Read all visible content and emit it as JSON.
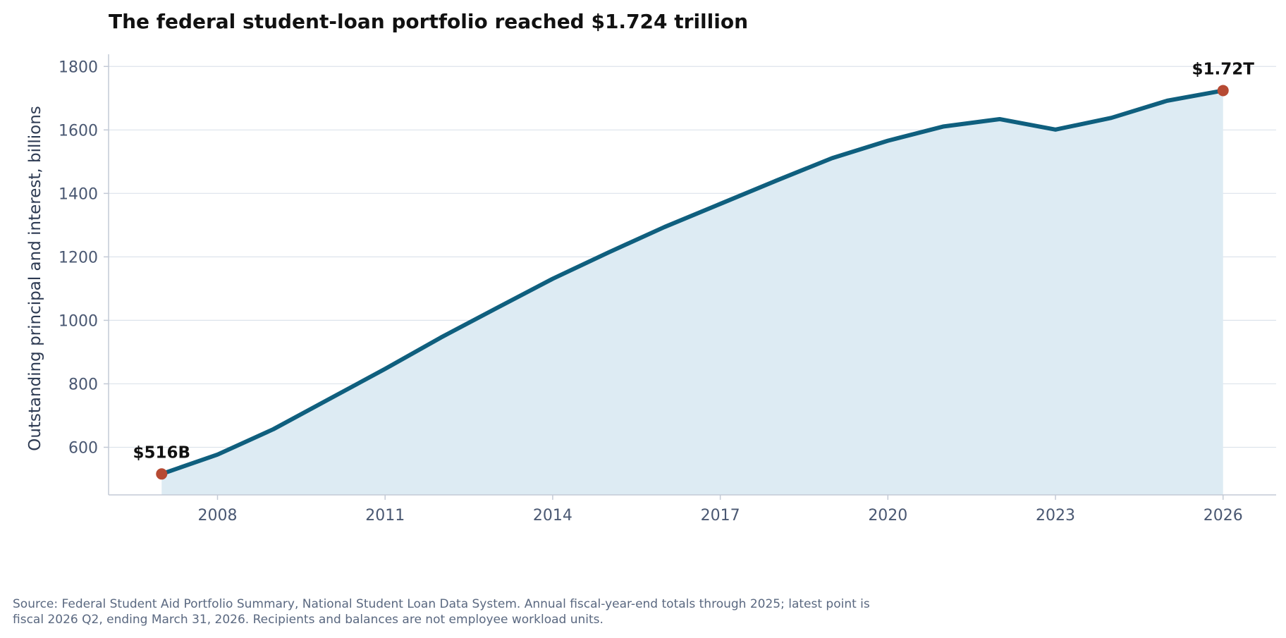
{
  "chart_data": {
    "type": "area",
    "title": "The federal student-loan portfolio reached $1.724 trillion",
    "ylabel": "Outstanding principal and interest, billions",
    "xlabel": "",
    "x": [
      2007,
      2008,
      2009,
      2010,
      2011,
      2012,
      2013,
      2014,
      2015,
      2016,
      2017,
      2018,
      2019,
      2020,
      2021,
      2022,
      2023,
      2024,
      2025,
      2026
    ],
    "series": [
      {
        "values": [
          516,
          577,
          657,
          752,
          847,
          946,
          1039,
          1131,
          1214,
          1294,
          1367,
          1440,
          1511,
          1566,
          1611,
          1634,
          1601,
          1638,
          1692,
          1724
        ]
      }
    ],
    "xlim": [
      2006.05,
      2026.95
    ],
    "ylim": [
      450,
      1825
    ],
    "xticks": [
      2008,
      2011,
      2014,
      2017,
      2020,
      2023,
      2026
    ],
    "yticks": [
      600,
      800,
      1000,
      1200,
      1400,
      1600,
      1800
    ],
    "grid": "horizontal",
    "annotations": [
      {
        "x": 2007,
        "y": 516,
        "label": "$516B"
      },
      {
        "x": 2026,
        "y": 1724,
        "label": "$1.72T"
      }
    ],
    "colors": {
      "line": "#0f5f7e",
      "fill": "#ddebf3",
      "marker": "#b64a33",
      "grid": "#dde3ec",
      "axis": "#c3cad6"
    }
  },
  "source_note": {
    "line1": "Source: Federal Student Aid Portfolio Summary, National Student Loan Data System. Annual fiscal-year-end totals through 2025; latest point is",
    "line2": "fiscal 2026 Q2, ending March 31, 2026. Recipients and balances are not employee workload units."
  }
}
